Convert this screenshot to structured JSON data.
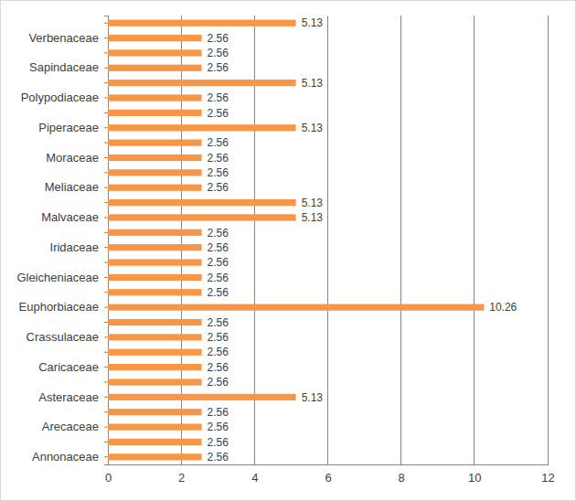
{
  "chart_data": {
    "type": "bar",
    "orientation": "horizontal",
    "categories": [
      "Annonaceae",
      null,
      "Arecaceae",
      null,
      "Asteraceae",
      null,
      "Caricaceae",
      null,
      "Crassulaceae",
      null,
      "Euphorbiaceae",
      null,
      "Gleicheniaceae",
      null,
      "Iridaceae",
      null,
      "Malvaceae",
      null,
      "Meliaceae",
      null,
      "Moraceae",
      null,
      "Piperaceae",
      null,
      "Polypodiaceae",
      null,
      "Sapindaceae",
      null,
      "Verbenaceae",
      null
    ],
    "values": [
      2.56,
      2.56,
      2.56,
      2.56,
      5.13,
      2.56,
      2.56,
      2.56,
      2.56,
      2.56,
      10.26,
      2.56,
      2.56,
      2.56,
      2.56,
      2.56,
      5.13,
      5.13,
      2.56,
      2.56,
      2.56,
      2.56,
      5.13,
      2.56,
      2.56,
      5.13,
      2.56,
      2.56,
      2.56,
      5.13
    ],
    "color": "#f79646",
    "xlim": [
      0,
      12
    ],
    "xticks": [
      0,
      2,
      4,
      6,
      8,
      10,
      12
    ],
    "grid": true,
    "data_labels": true
  }
}
